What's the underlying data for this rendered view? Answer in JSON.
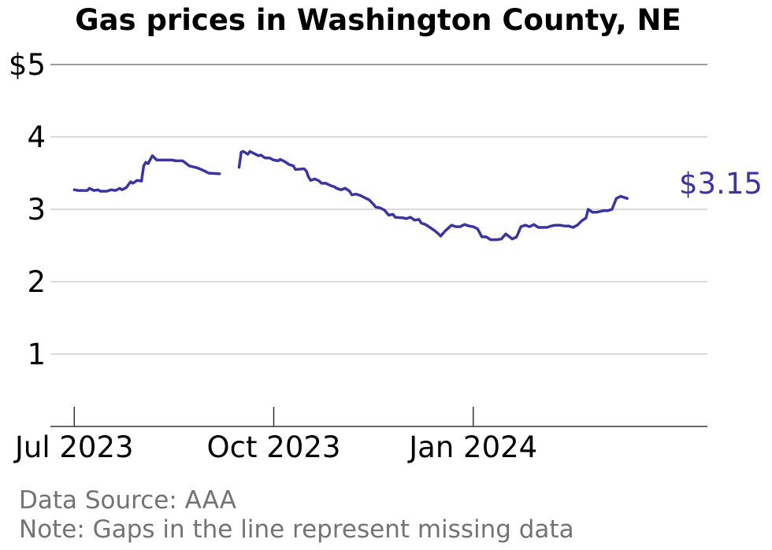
{
  "chart_data": {
    "type": "line",
    "title": "Gas prices in Washington County, NE",
    "xlabel": "",
    "ylabel": "",
    "ylim": [
      0,
      5
    ],
    "yticks": [
      {
        "value": 1,
        "label": "1"
      },
      {
        "value": 2,
        "label": "2"
      },
      {
        "value": 3,
        "label": "3"
      },
      {
        "value": 4,
        "label": "4"
      },
      {
        "value": 5,
        "label": "$5"
      }
    ],
    "xlim": [
      "2023-06-20",
      "2024-04-18"
    ],
    "xticks": [
      {
        "date": "2023-07-01",
        "label": "Jul 2023"
      },
      {
        "date": "2023-10-01",
        "label": "Oct 2023"
      },
      {
        "date": "2024-01-01",
        "label": "Jan 2024"
      }
    ],
    "grid": true,
    "line_color": "#3a35a0",
    "end_label": "$3.15",
    "segments": [
      [
        [
          "2023-07-01",
          3.27
        ],
        [
          "2023-07-03",
          3.26
        ],
        [
          "2023-07-05",
          3.26
        ],
        [
          "2023-07-07",
          3.26
        ],
        [
          "2023-07-08",
          3.29
        ],
        [
          "2023-07-10",
          3.26
        ],
        [
          "2023-07-12",
          3.27
        ],
        [
          "2023-07-13",
          3.25
        ],
        [
          "2023-07-16",
          3.25
        ],
        [
          "2023-07-18",
          3.27
        ],
        [
          "2023-07-20",
          3.26
        ],
        [
          "2023-07-22",
          3.29
        ],
        [
          "2023-07-23",
          3.27
        ],
        [
          "2023-07-25",
          3.3
        ],
        [
          "2023-07-27",
          3.38
        ],
        [
          "2023-07-28",
          3.36
        ],
        [
          "2023-07-30",
          3.4
        ],
        [
          "2023-08-01",
          3.39
        ],
        [
          "2023-08-02",
          3.6
        ],
        [
          "2023-08-03",
          3.65
        ],
        [
          "2023-08-04",
          3.63
        ],
        [
          "2023-08-06",
          3.74
        ],
        [
          "2023-08-08",
          3.68
        ],
        [
          "2023-08-15",
          3.68
        ],
        [
          "2023-08-17",
          3.67
        ],
        [
          "2023-08-20",
          3.67
        ],
        [
          "2023-08-23",
          3.6
        ],
        [
          "2023-08-27",
          3.57
        ],
        [
          "2023-08-30",
          3.53
        ],
        [
          "2023-09-01",
          3.5
        ],
        [
          "2023-09-06",
          3.49
        ]
      ],
      [
        [
          "2023-09-15",
          3.58
        ],
        [
          "2023-09-16",
          3.79
        ],
        [
          "2023-09-17",
          3.8
        ],
        [
          "2023-09-19",
          3.76
        ],
        [
          "2023-09-20",
          3.8
        ],
        [
          "2023-09-22",
          3.77
        ],
        [
          "2023-09-24",
          3.74
        ],
        [
          "2023-09-25",
          3.75
        ],
        [
          "2023-09-27",
          3.71
        ],
        [
          "2023-09-29",
          3.71
        ],
        [
          "2023-10-01",
          3.68
        ],
        [
          "2023-10-03",
          3.67
        ],
        [
          "2023-10-04",
          3.69
        ],
        [
          "2023-10-06",
          3.66
        ],
        [
          "2023-10-08",
          3.62
        ],
        [
          "2023-10-10",
          3.6
        ],
        [
          "2023-10-11",
          3.55
        ],
        [
          "2023-10-15",
          3.56
        ],
        [
          "2023-10-16",
          3.53
        ],
        [
          "2023-10-17",
          3.45
        ],
        [
          "2023-10-18",
          3.4
        ],
        [
          "2023-10-20",
          3.42
        ],
        [
          "2023-10-22",
          3.39
        ],
        [
          "2023-10-23",
          3.36
        ],
        [
          "2023-10-25",
          3.36
        ],
        [
          "2023-10-27",
          3.33
        ],
        [
          "2023-10-29",
          3.31
        ],
        [
          "2023-10-30",
          3.29
        ],
        [
          "2023-11-01",
          3.27
        ],
        [
          "2023-11-03",
          3.29
        ],
        [
          "2023-11-05",
          3.25
        ],
        [
          "2023-11-06",
          3.2
        ],
        [
          "2023-11-08",
          3.21
        ],
        [
          "2023-11-10",
          3.19
        ],
        [
          "2023-11-12",
          3.16
        ],
        [
          "2023-11-14",
          3.13
        ],
        [
          "2023-11-16",
          3.07
        ],
        [
          "2023-11-17",
          3.03
        ],
        [
          "2023-11-19",
          3.02
        ],
        [
          "2023-11-21",
          2.99
        ],
        [
          "2023-11-23",
          2.92
        ],
        [
          "2023-11-25",
          2.93
        ],
        [
          "2023-11-26",
          2.89
        ],
        [
          "2023-11-30",
          2.88
        ],
        [
          "2023-12-01",
          2.87
        ],
        [
          "2023-12-03",
          2.89
        ],
        [
          "2023-12-05",
          2.85
        ],
        [
          "2023-12-07",
          2.86
        ],
        [
          "2023-12-08",
          2.81
        ],
        [
          "2023-12-10",
          2.79
        ],
        [
          "2023-12-12",
          2.75
        ],
        [
          "2023-12-14",
          2.71
        ],
        [
          "2023-12-16",
          2.66
        ],
        [
          "2023-12-17",
          2.63
        ],
        [
          "2023-12-19",
          2.7
        ],
        [
          "2023-12-22",
          2.78
        ],
        [
          "2023-12-24",
          2.76
        ],
        [
          "2023-12-26",
          2.76
        ],
        [
          "2023-12-28",
          2.79
        ],
        [
          "2023-12-30",
          2.77
        ],
        [
          "2024-01-01",
          2.76
        ],
        [
          "2024-01-03",
          2.73
        ],
        [
          "2024-01-05",
          2.62
        ],
        [
          "2024-01-07",
          2.62
        ],
        [
          "2024-01-09",
          2.58
        ],
        [
          "2024-01-12",
          2.58
        ],
        [
          "2024-01-14",
          2.59
        ],
        [
          "2024-01-16",
          2.66
        ],
        [
          "2024-01-19",
          2.59
        ],
        [
          "2024-01-21",
          2.62
        ],
        [
          "2024-01-23",
          2.76
        ],
        [
          "2024-01-25",
          2.78
        ],
        [
          "2024-01-27",
          2.76
        ],
        [
          "2024-01-29",
          2.79
        ],
        [
          "2024-01-31",
          2.75
        ],
        [
          "2024-02-02",
          2.75
        ],
        [
          "2024-02-04",
          2.75
        ],
        [
          "2024-02-06",
          2.77
        ],
        [
          "2024-02-08",
          2.78
        ],
        [
          "2024-02-10",
          2.78
        ],
        [
          "2024-02-12",
          2.77
        ],
        [
          "2024-02-14",
          2.77
        ],
        [
          "2024-02-16",
          2.75
        ],
        [
          "2024-02-18",
          2.78
        ],
        [
          "2024-02-20",
          2.84
        ],
        [
          "2024-02-22",
          2.88
        ],
        [
          "2024-02-23",
          3.0
        ],
        [
          "2024-02-25",
          2.96
        ],
        [
          "2024-02-27",
          2.96
        ],
        [
          "2024-03-01",
          2.98
        ],
        [
          "2024-03-03",
          2.98
        ],
        [
          "2024-03-05",
          3.0
        ],
        [
          "2024-03-07",
          3.15
        ],
        [
          "2024-03-09",
          3.18
        ],
        [
          "2024-03-10",
          3.17
        ],
        [
          "2024-03-12",
          3.15
        ]
      ]
    ],
    "footnotes": [
      "Data Source: AAA",
      "Note: Gaps in the line represent missing data"
    ]
  }
}
